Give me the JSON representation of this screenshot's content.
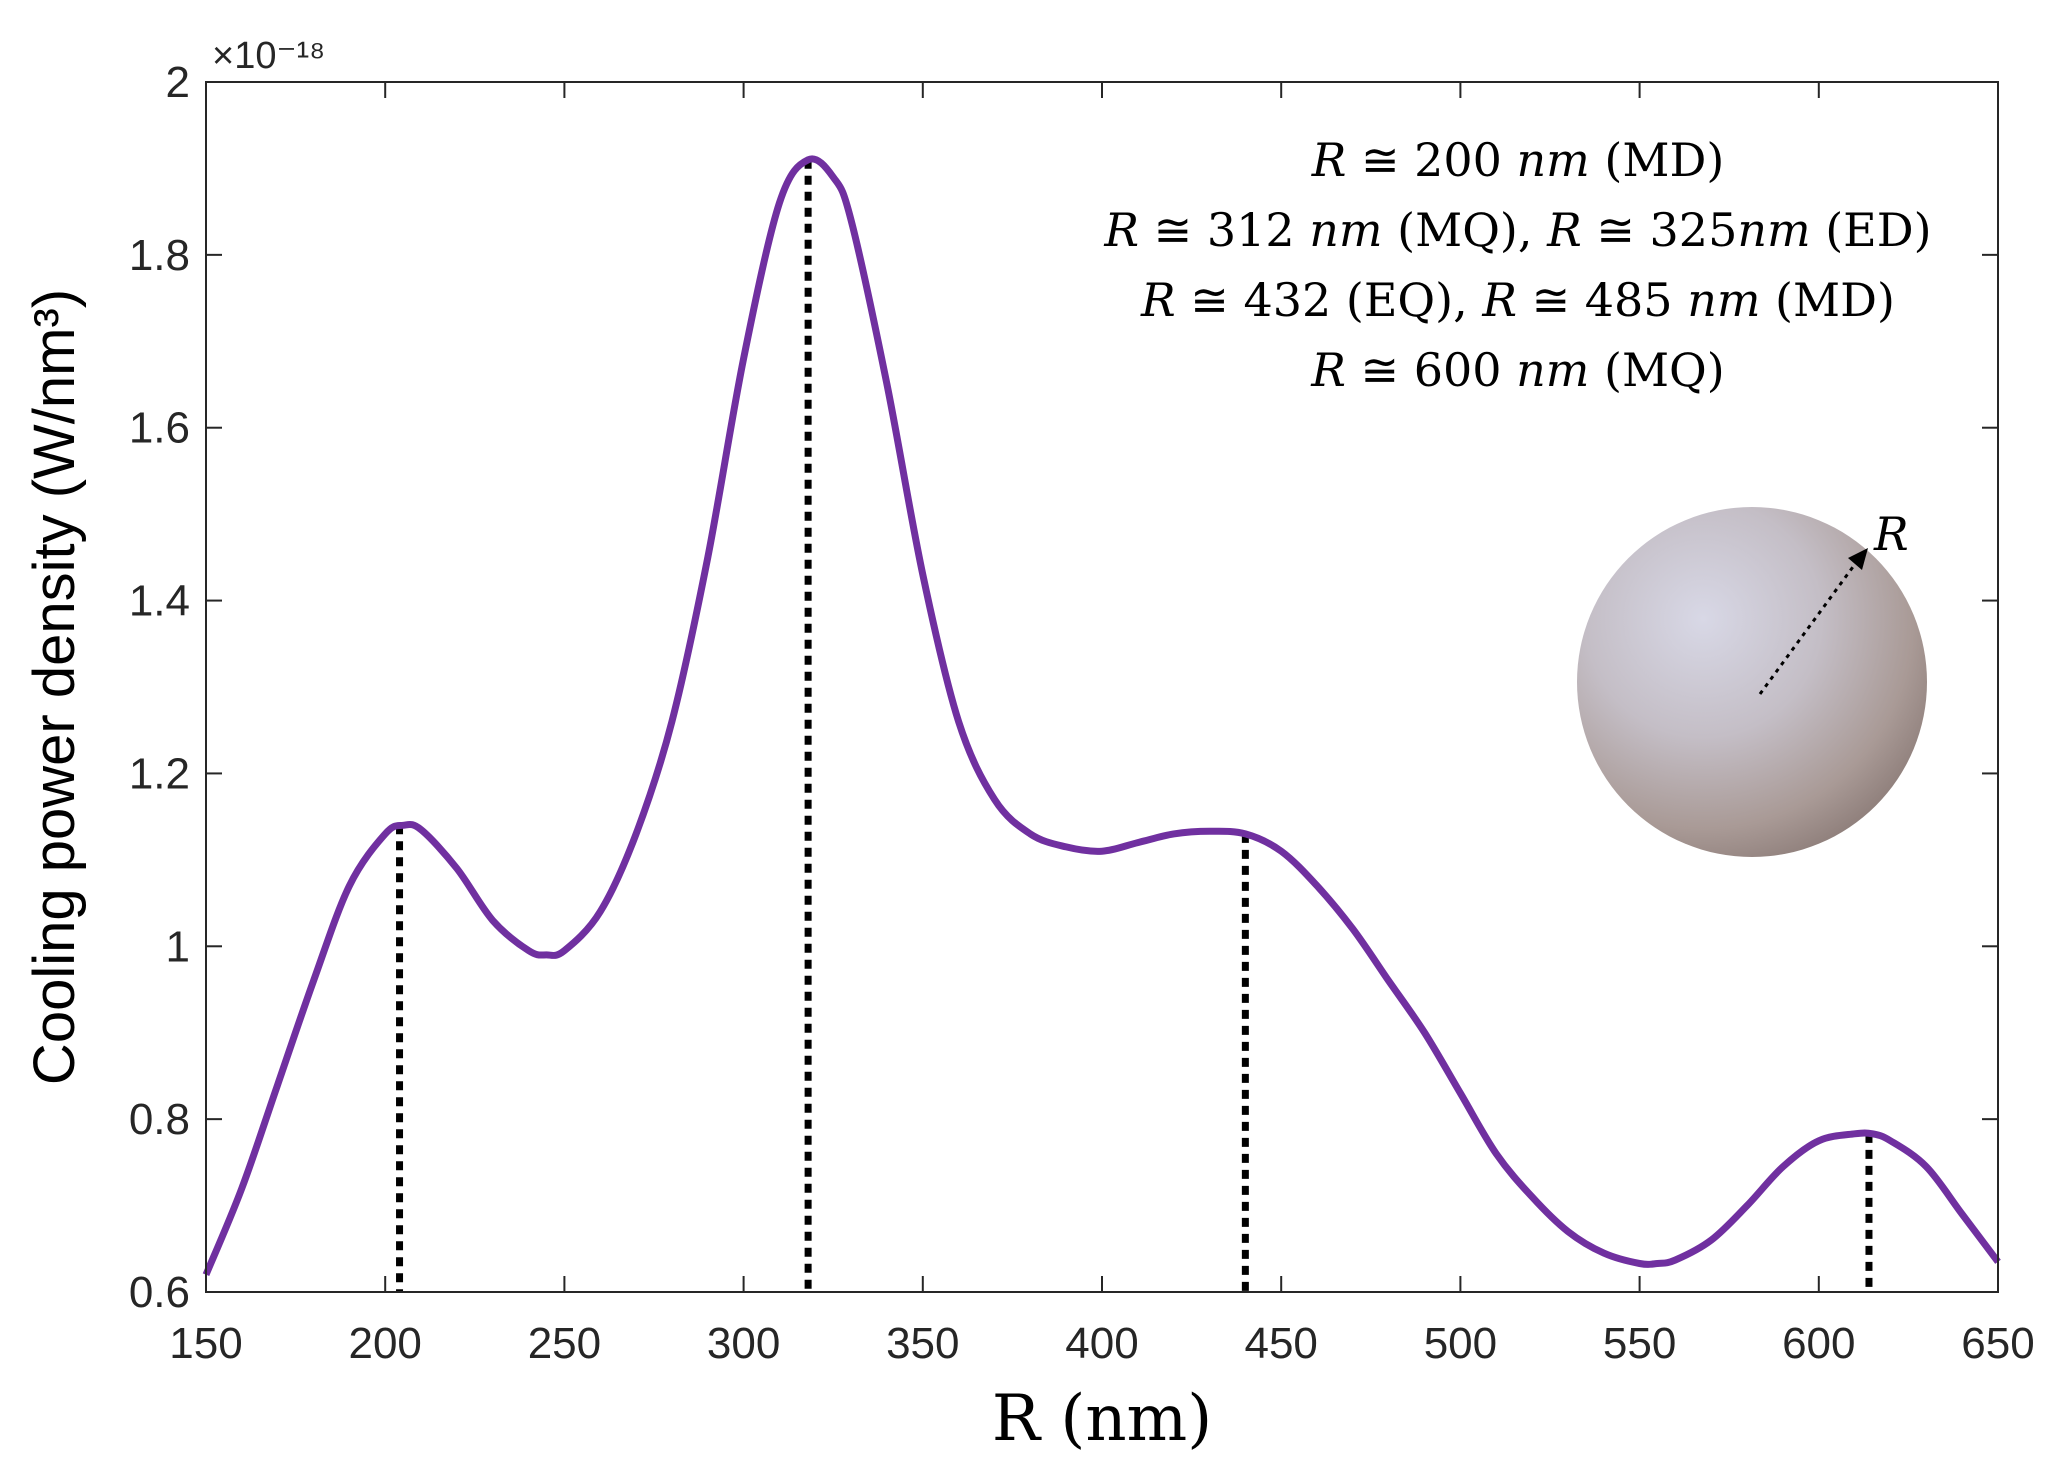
{
  "chart_data": {
    "type": "line",
    "xlabel": "R (nm)",
    "ylabel": "Cooling power density (W/nm³)",
    "xlim": [
      150,
      650
    ],
    "ylim": [
      0.6,
      2.0
    ],
    "x_ticks": [
      "150",
      "200",
      "250",
      "300",
      "350",
      "400",
      "450",
      "500",
      "550",
      "600",
      "650"
    ],
    "y_ticks": [
      "0.6",
      "0.8",
      "1",
      "1.2",
      "1.4",
      "1.6",
      "1.8",
      "2"
    ],
    "y_exponent": "×10⁻¹⁸",
    "grid": false,
    "series": [
      {
        "color": "#7030A0",
        "x": [
          150,
          160,
          170,
          180,
          190,
          200,
          205,
          210,
          220,
          230,
          240,
          245,
          250,
          260,
          270,
          280,
          290,
          300,
          310,
          318,
          325,
          330,
          340,
          350,
          360,
          370,
          380,
          390,
          400,
          410,
          420,
          430,
          440,
          450,
          460,
          470,
          480,
          490,
          500,
          510,
          520,
          530,
          540,
          550,
          555,
          560,
          570,
          580,
          590,
          600,
          610,
          615,
          620,
          630,
          640,
          650
        ],
        "y": [
          0.62,
          0.72,
          0.84,
          0.96,
          1.07,
          1.13,
          1.14,
          1.135,
          1.09,
          1.03,
          0.995,
          0.99,
          0.995,
          1.04,
          1.13,
          1.26,
          1.45,
          1.68,
          1.86,
          1.91,
          1.89,
          1.84,
          1.65,
          1.43,
          1.26,
          1.17,
          1.13,
          1.115,
          1.11,
          1.12,
          1.13,
          1.133,
          1.13,
          1.11,
          1.07,
          1.02,
          0.96,
          0.9,
          0.83,
          0.76,
          0.71,
          0.67,
          0.645,
          0.633,
          0.633,
          0.637,
          0.66,
          0.7,
          0.745,
          0.775,
          0.783,
          0.783,
          0.775,
          0.745,
          0.69,
          0.635
        ]
      }
    ],
    "markers": [
      {
        "x": 204,
        "y": 1.14
      },
      {
        "x": 318,
        "y": 1.91
      },
      {
        "x": 440,
        "y": 1.13
      },
      {
        "x": 614,
        "y": 0.783
      }
    ],
    "annotations": [
      {
        "parts": [
          {
            "text": "R",
            "italic": true
          },
          {
            "text": " ≅ 200 "
          },
          {
            "text": "nm",
            "italic": true
          },
          {
            "text": " (MD)"
          }
        ]
      },
      {
        "parts": [
          {
            "text": "R",
            "italic": true
          },
          {
            "text": " ≅ 312 "
          },
          {
            "text": "nm",
            "italic": true
          },
          {
            "text": " (MQ), "
          },
          {
            "text": "R",
            "italic": true
          },
          {
            "text": " ≅ 325"
          },
          {
            "text": "nm",
            "italic": true
          },
          {
            "text": " (ED)"
          }
        ]
      },
      {
        "parts": [
          {
            "text": "R",
            "italic": true
          },
          {
            "text": " ≅ 432 (EQ), "
          },
          {
            "text": "R",
            "italic": true
          },
          {
            "text": " ≅ 485 "
          },
          {
            "text": "nm",
            "italic": true
          },
          {
            "text": " (MD)"
          }
        ]
      },
      {
        "parts": [
          {
            "text": "R",
            "italic": true
          },
          {
            "text": " ≅ 600 "
          },
          {
            "text": "nm",
            "italic": true
          },
          {
            "text": " (MQ)"
          }
        ]
      }
    ],
    "inset": {
      "label": "R"
    }
  }
}
